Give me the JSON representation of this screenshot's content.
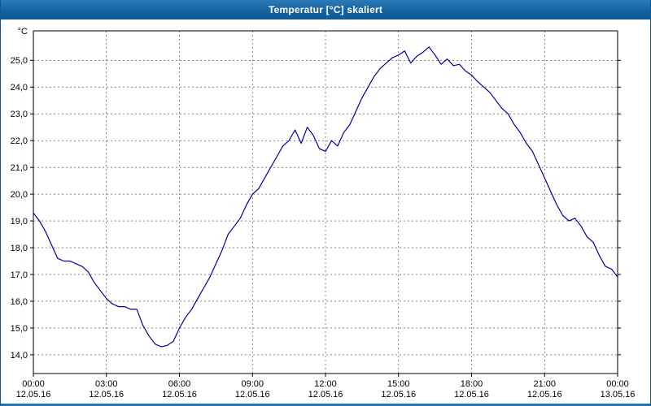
{
  "window": {
    "title": "Temperatur [°C] skaliert"
  },
  "chart_data": {
    "type": "line",
    "title": "Temperatur [°C] skaliert",
    "ylabel": "°C",
    "xlabel": "",
    "legend": null,
    "grid": true,
    "line_color": "#0000a0",
    "ylim": [
      13.3,
      26.1
    ],
    "xlim_hours": [
      0,
      24
    ],
    "y_ticks": [
      14,
      15,
      16,
      17,
      18,
      19,
      20,
      21,
      22,
      23,
      24,
      25
    ],
    "y_tick_labels": [
      "14,0",
      "15,0",
      "16,0",
      "17,0",
      "18,0",
      "19,0",
      "20,0",
      "21,0",
      "22,0",
      "23,0",
      "24,0",
      "25,0"
    ],
    "x_ticks_hours": [
      0,
      3,
      6,
      9,
      12,
      15,
      18,
      21,
      24
    ],
    "x_tick_labels": [
      "00:00",
      "03:00",
      "06:00",
      "09:00",
      "12:00",
      "15:00",
      "18:00",
      "21:00",
      "00:00"
    ],
    "x_tick_dates": [
      "12.05.16",
      "12.05.16",
      "12.05.16",
      "12.05.16",
      "12.05.16",
      "12.05.16",
      "12.05.16",
      "12.05.16",
      "13.05.16"
    ],
    "start_hour": 0,
    "sample_interval_hours": 0.25,
    "values": [
      19.3,
      19.0,
      18.6,
      18.1,
      17.6,
      17.5,
      17.5,
      17.4,
      17.3,
      17.1,
      16.7,
      16.4,
      16.1,
      15.9,
      15.8,
      15.8,
      15.7,
      15.7,
      15.1,
      14.7,
      14.4,
      14.3,
      14.35,
      14.5,
      15.0,
      15.4,
      15.7,
      16.1,
      16.5,
      16.9,
      17.4,
      17.9,
      18.5,
      18.8,
      19.1,
      19.6,
      20.0,
      20.2,
      20.6,
      21.0,
      21.4,
      21.8,
      22.0,
      22.4,
      21.9,
      22.5,
      22.2,
      21.7,
      21.6,
      22.0,
      21.8,
      22.3,
      22.6,
      23.1,
      23.6,
      24.0,
      24.4,
      24.7,
      24.9,
      25.1,
      25.2,
      25.35,
      24.9,
      25.15,
      25.3,
      25.5,
      25.2,
      24.85,
      25.05,
      24.8,
      24.85,
      24.6,
      24.45,
      24.2,
      24.0,
      23.8,
      23.5,
      23.2,
      23.0,
      22.6,
      22.3,
      21.9,
      21.6,
      21.1,
      20.6,
      20.1,
      19.6,
      19.2,
      19.0,
      19.1,
      18.8,
      18.4,
      18.2,
      17.7,
      17.3,
      17.2,
      16.9
    ]
  }
}
